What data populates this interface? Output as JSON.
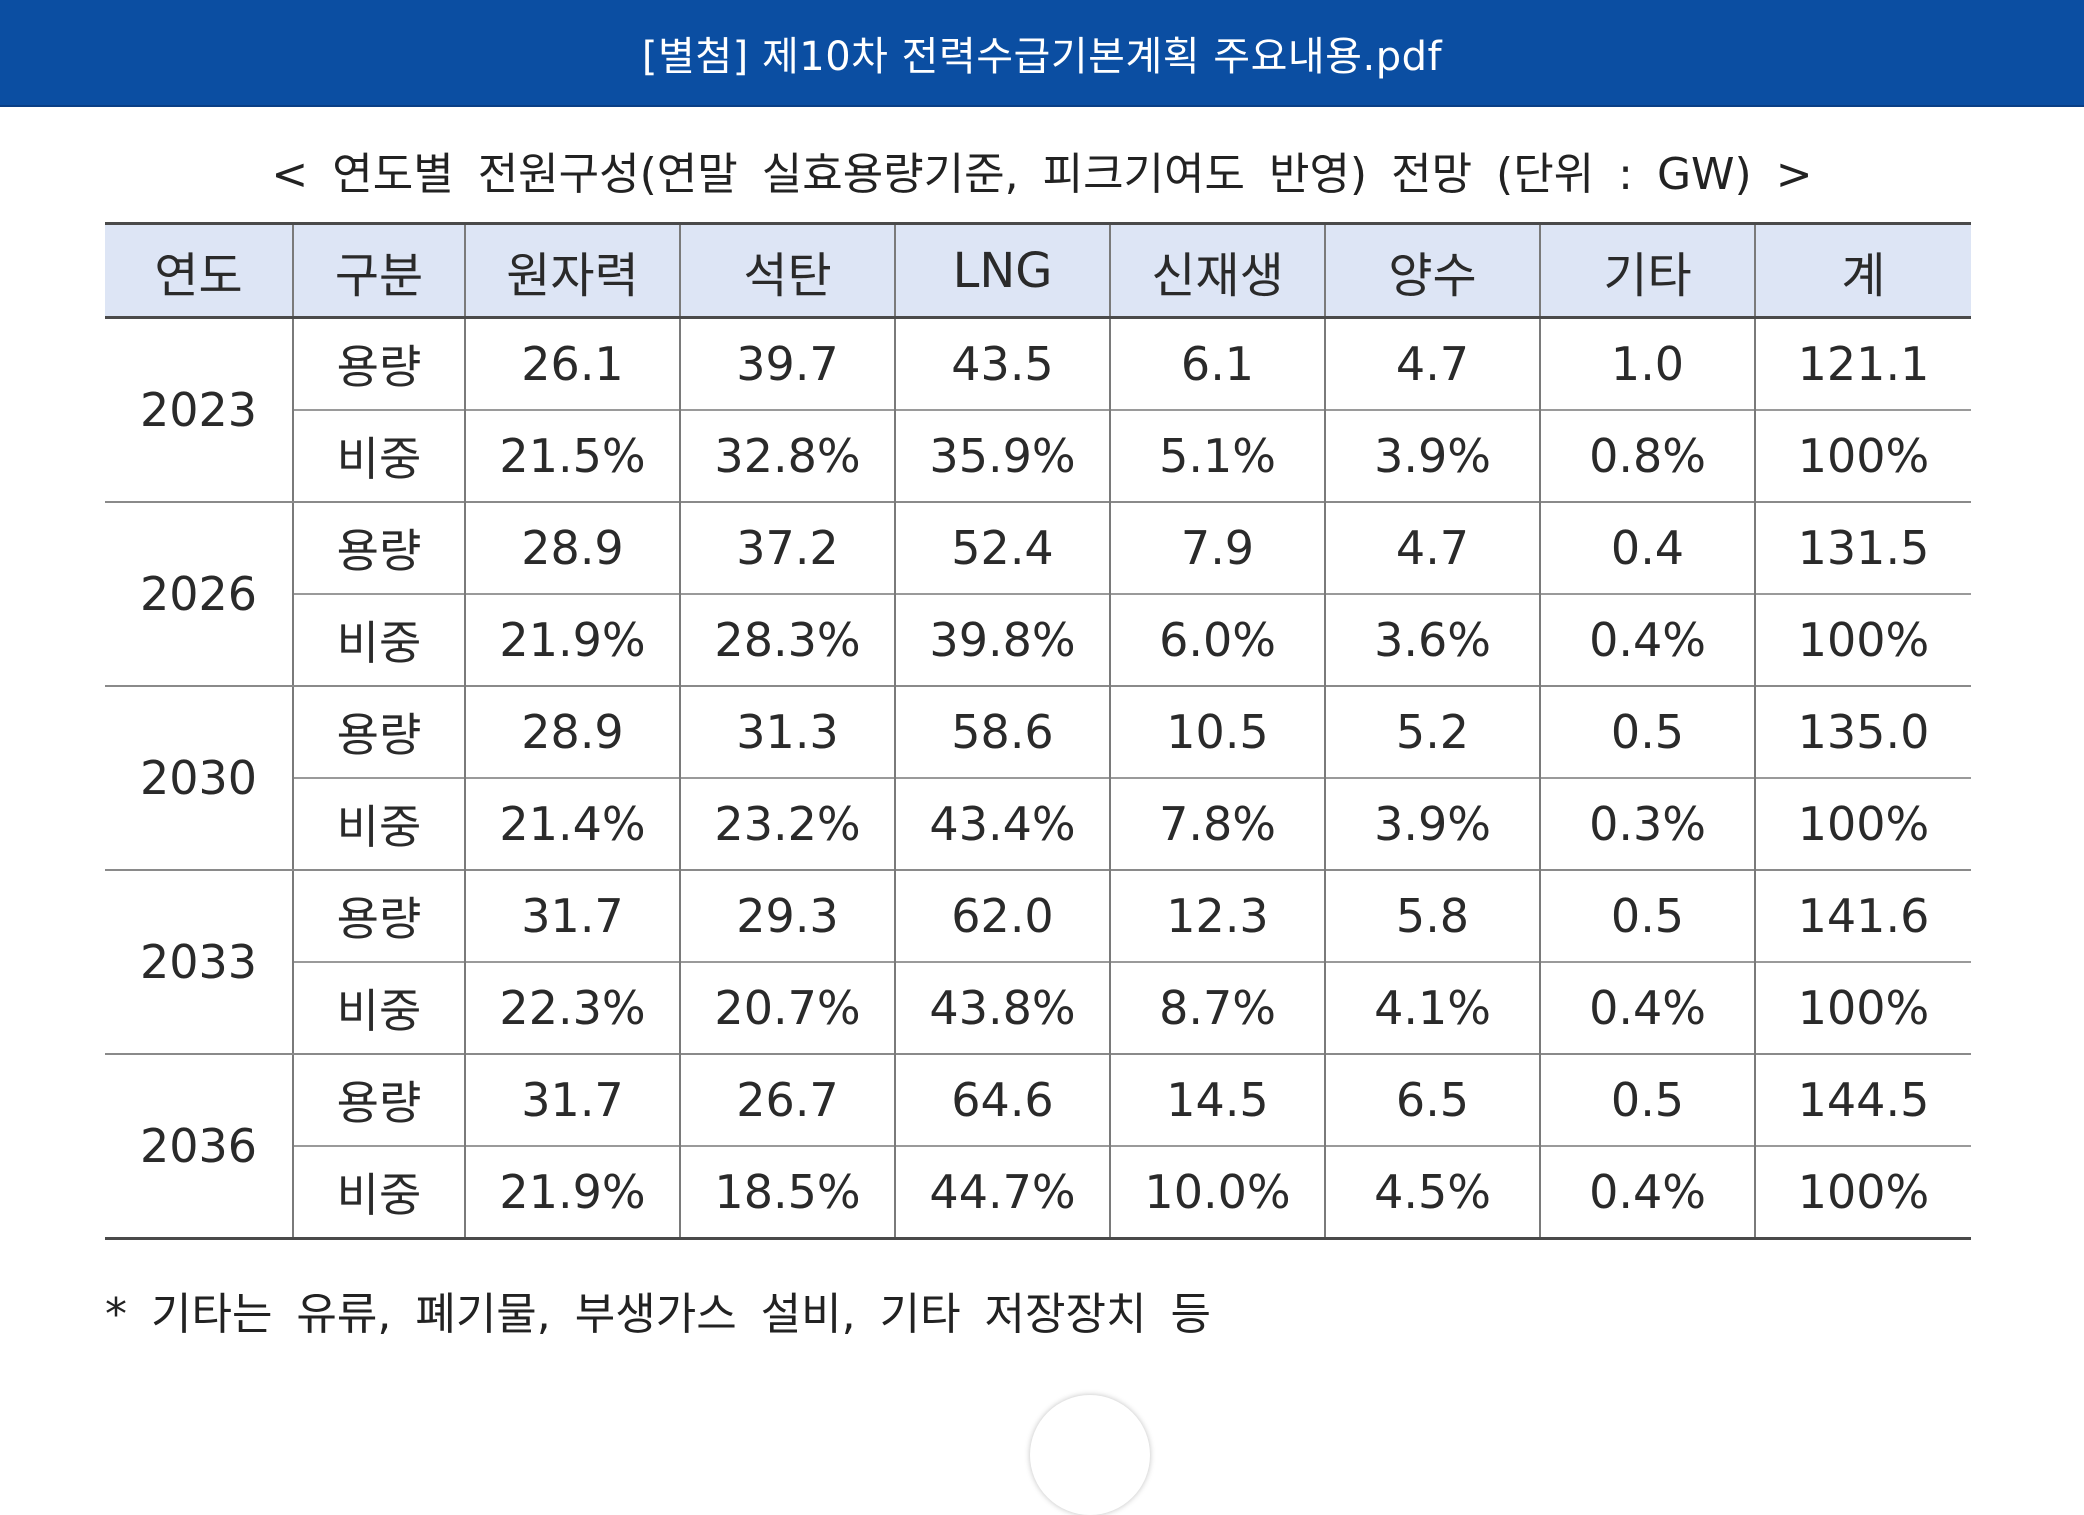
{
  "header": {
    "title": "[별첨] 제10차 전력수급기본계획 주요내용.pdf"
  },
  "caption": "< 연도별 전원구성(연말 실효용량기준, 피크기여도 반영) 전망 (단위 : GW) >",
  "table": {
    "headers": [
      "연도",
      "구분",
      "원자력",
      "석탄",
      "LNG",
      "신재생",
      "양수",
      "기타",
      "계"
    ],
    "years": [
      {
        "year": "2023",
        "rows": [
          {
            "kind": "용량",
            "values": [
              "26.1",
              "39.7",
              "43.5",
              "6.1",
              "4.7",
              "1.0",
              "121.1"
            ]
          },
          {
            "kind": "비중",
            "values": [
              "21.5%",
              "32.8%",
              "35.9%",
              "5.1%",
              "3.9%",
              "0.8%",
              "100%"
            ]
          }
        ]
      },
      {
        "year": "2026",
        "rows": [
          {
            "kind": "용량",
            "values": [
              "28.9",
              "37.2",
              "52.4",
              "7.9",
              "4.7",
              "0.4",
              "131.5"
            ]
          },
          {
            "kind": "비중",
            "values": [
              "21.9%",
              "28.3%",
              "39.8%",
              "6.0%",
              "3.6%",
              "0.4%",
              "100%"
            ]
          }
        ]
      },
      {
        "year": "2030",
        "rows": [
          {
            "kind": "용량",
            "values": [
              "28.9",
              "31.3",
              "58.6",
              "10.5",
              "5.2",
              "0.5",
              "135.0"
            ]
          },
          {
            "kind": "비중",
            "values": [
              "21.4%",
              "23.2%",
              "43.4%",
              "7.8%",
              "3.9%",
              "0.3%",
              "100%"
            ]
          }
        ]
      },
      {
        "year": "2033",
        "rows": [
          {
            "kind": "용량",
            "values": [
              "31.7",
              "29.3",
              "62.0",
              "12.3",
              "5.8",
              "0.5",
              "141.6"
            ]
          },
          {
            "kind": "비중",
            "values": [
              "22.3%",
              "20.7%",
              "43.8%",
              "8.7%",
              "4.1%",
              "0.4%",
              "100%"
            ]
          }
        ]
      },
      {
        "year": "2036",
        "rows": [
          {
            "kind": "용량",
            "values": [
              "31.7",
              "26.7",
              "64.6",
              "14.5",
              "6.5",
              "0.5",
              "144.5"
            ]
          },
          {
            "kind": "비중",
            "values": [
              "21.9%",
              "18.5%",
              "44.7%",
              "10.0%",
              "4.5%",
              "0.4%",
              "100%"
            ]
          }
        ]
      }
    ]
  },
  "footnote": "* 기타는 유류, 폐기물, 부생가스 설비, 기타 저장장치 등",
  "colors": {
    "header_bar": "#0b4ea2",
    "table_header_bg": "#dde5f5"
  }
}
